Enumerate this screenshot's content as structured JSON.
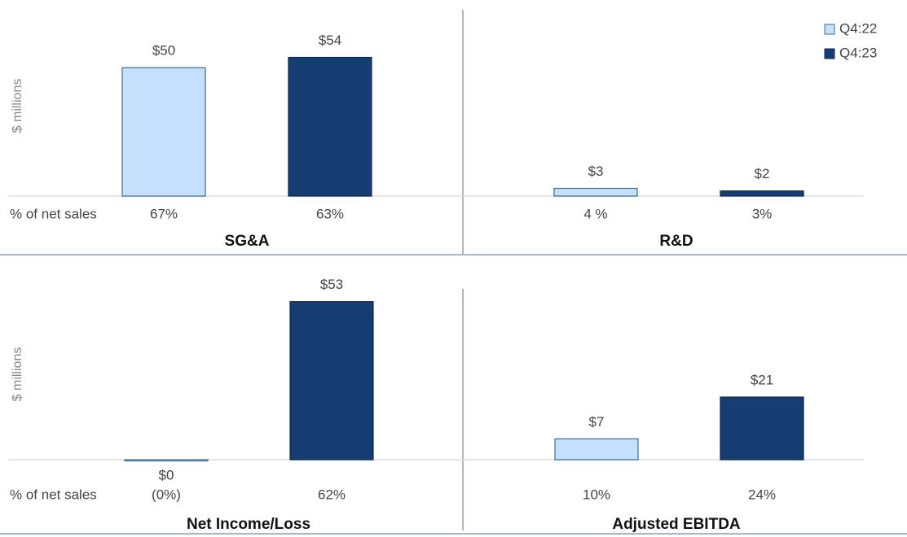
{
  "legend": [
    {
      "name": "Q4:22",
      "color": "#c4e0fc"
    },
    {
      "name": "Q4:23",
      "color": "#163d72"
    }
  ],
  "chart_data": [
    {
      "type": "bar",
      "title": "SG&A",
      "y_label": "$ millions",
      "row_label": "% of net sales",
      "values": [
        50,
        54
      ],
      "value_labels": [
        "$50",
        "$54"
      ],
      "net_sales_labels": [
        "67%",
        "63%"
      ],
      "ylim": [
        0,
        70
      ]
    },
    {
      "type": "bar",
      "title": "R&D",
      "values": [
        3,
        2
      ],
      "value_labels": [
        "$3",
        "$2"
      ],
      "net_sales_labels": [
        "4 %",
        "3%"
      ],
      "ylim": [
        0,
        70
      ]
    },
    {
      "type": "bar",
      "title": "Net Income/Loss",
      "y_label": "$ millions",
      "row_label": "% of net sales",
      "values": [
        -0.4,
        53
      ],
      "value_labels": [
        "$0",
        "$53"
      ],
      "net_sales_labels": [
        "(0%)",
        "62%"
      ],
      "ylim": [
        0,
        60
      ]
    },
    {
      "type": "bar",
      "title": "Adjusted EBITDA",
      "values": [
        7,
        21
      ],
      "value_labels": [
        "$7",
        "$21"
      ],
      "net_sales_labels": [
        "10%",
        "24%"
      ],
      "ylim": [
        0,
        60
      ]
    }
  ]
}
